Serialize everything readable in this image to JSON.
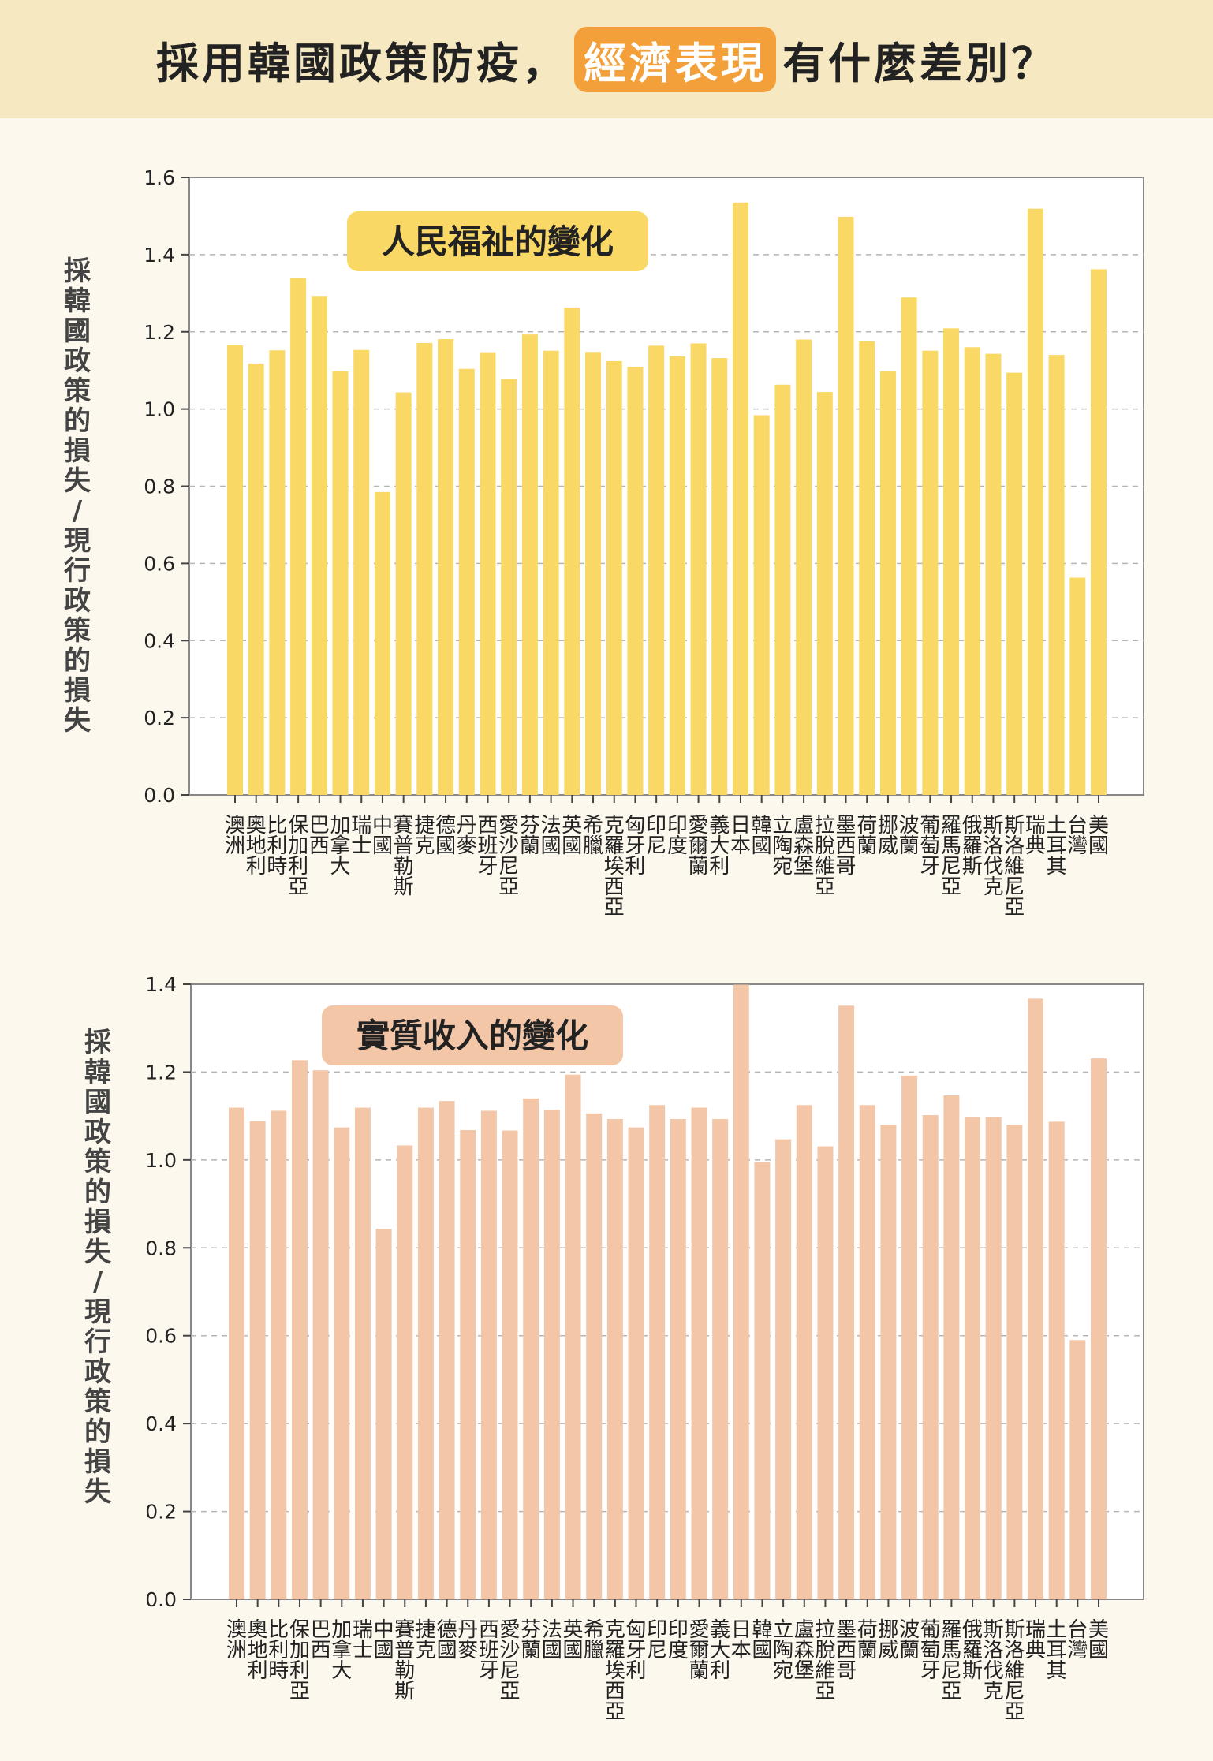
{
  "header": {
    "title_before": "採用韓國政策防疫，",
    "title_highlight": "經濟表現",
    "title_after": "有什麼差別？",
    "highlight_color": "#f4a03a",
    "background_color": "#f6e8c0"
  },
  "chart_data": [
    {
      "type": "bar",
      "title": "人民福祉的變化",
      "ylabel": "採韓國政策的損失/現行政策的損失",
      "ylim": [
        0,
        1.6
      ],
      "yticks": [
        "0.0",
        "0.2",
        "0.4",
        "0.6",
        "0.8",
        "1.0",
        "1.2",
        "1.4",
        "1.6"
      ],
      "grid": true,
      "bar_color": "#f9d865",
      "badge_color": "#f9d865",
      "highlight_category": "韓國",
      "highlight_color": "#e8302a",
      "categories": [
        "澳洲",
        "奧地利",
        "比利時",
        "保加利亞",
        "巴西",
        "加拿大",
        "瑞士",
        "中國",
        "賽普勒斯",
        "捷克",
        "德國",
        "丹麥",
        "西班牙",
        "愛沙尼亞",
        "芬蘭",
        "法國",
        "英國",
        "希臘",
        "克羅埃西亞",
        "匈牙利",
        "印尼",
        "印度",
        "愛爾蘭",
        "義大利",
        "日本",
        "韓國",
        "立陶宛",
        "盧森堡",
        "拉脫維亞",
        "墨西哥",
        "荷蘭",
        "挪威",
        "波蘭",
        "葡萄牙",
        "羅馬尼亞",
        "俄羅斯",
        "斯洛伐克",
        "斯洛維尼亞",
        "瑞典",
        "土耳其",
        "台灣",
        "美國"
      ],
      "values": [
        1.165,
        1.118,
        1.152,
        1.34,
        1.293,
        1.098,
        1.153,
        0.785,
        1.043,
        1.171,
        1.181,
        1.104,
        1.147,
        1.078,
        1.193,
        1.151,
        1.263,
        1.148,
        1.124,
        1.109,
        1.164,
        1.136,
        1.17,
        1.132,
        1.535,
        0.984,
        1.063,
        1.18,
        1.044,
        1.498,
        1.175,
        1.098,
        1.289,
        1.151,
        1.209,
        1.16,
        1.143,
        1.094,
        1.519,
        1.14,
        0.563,
        1.362
      ]
    },
    {
      "type": "bar",
      "title": "實質收入的變化",
      "ylabel": "採韓國政策的損失/現行政策的損失",
      "ylim": [
        0,
        1.4
      ],
      "yticks": [
        "0.0",
        "0.2",
        "0.4",
        "0.6",
        "0.8",
        "1.0",
        "1.2",
        "1.4"
      ],
      "grid": true,
      "bar_color": "#f3c6a8",
      "badge_color": "#f3c6a8",
      "highlight_category": "韓國",
      "highlight_color": "#e8302a",
      "categories": [
        "澳洲",
        "奧地利",
        "比利時",
        "保加利亞",
        "巴西",
        "加拿大",
        "瑞士",
        "中國",
        "賽普勒斯",
        "捷克",
        "德國",
        "丹麥",
        "西班牙",
        "愛沙尼亞",
        "芬蘭",
        "法國",
        "英國",
        "希臘",
        "克羅埃西亞",
        "匈牙利",
        "印尼",
        "印度",
        "愛爾蘭",
        "義大利",
        "日本",
        "韓國",
        "立陶宛",
        "盧森堡",
        "拉脫維亞",
        "墨西哥",
        "荷蘭",
        "挪威",
        "波蘭",
        "葡萄牙",
        "羅馬尼亞",
        "俄羅斯",
        "斯洛伐克",
        "斯洛維尼亞",
        "瑞典",
        "土耳其",
        "台灣",
        "美國"
      ],
      "values": [
        1.119,
        1.088,
        1.112,
        1.227,
        1.204,
        1.074,
        1.119,
        0.843,
        1.033,
        1.119,
        1.134,
        1.068,
        1.112,
        1.067,
        1.14,
        1.114,
        1.194,
        1.106,
        1.093,
        1.074,
        1.125,
        1.093,
        1.119,
        1.093,
        1.399,
        0.995,
        1.047,
        1.125,
        1.031,
        1.351,
        1.125,
        1.08,
        1.192,
        1.102,
        1.147,
        1.098,
        1.098,
        1.08,
        1.367,
        1.087,
        0.59,
        1.231
      ]
    }
  ]
}
